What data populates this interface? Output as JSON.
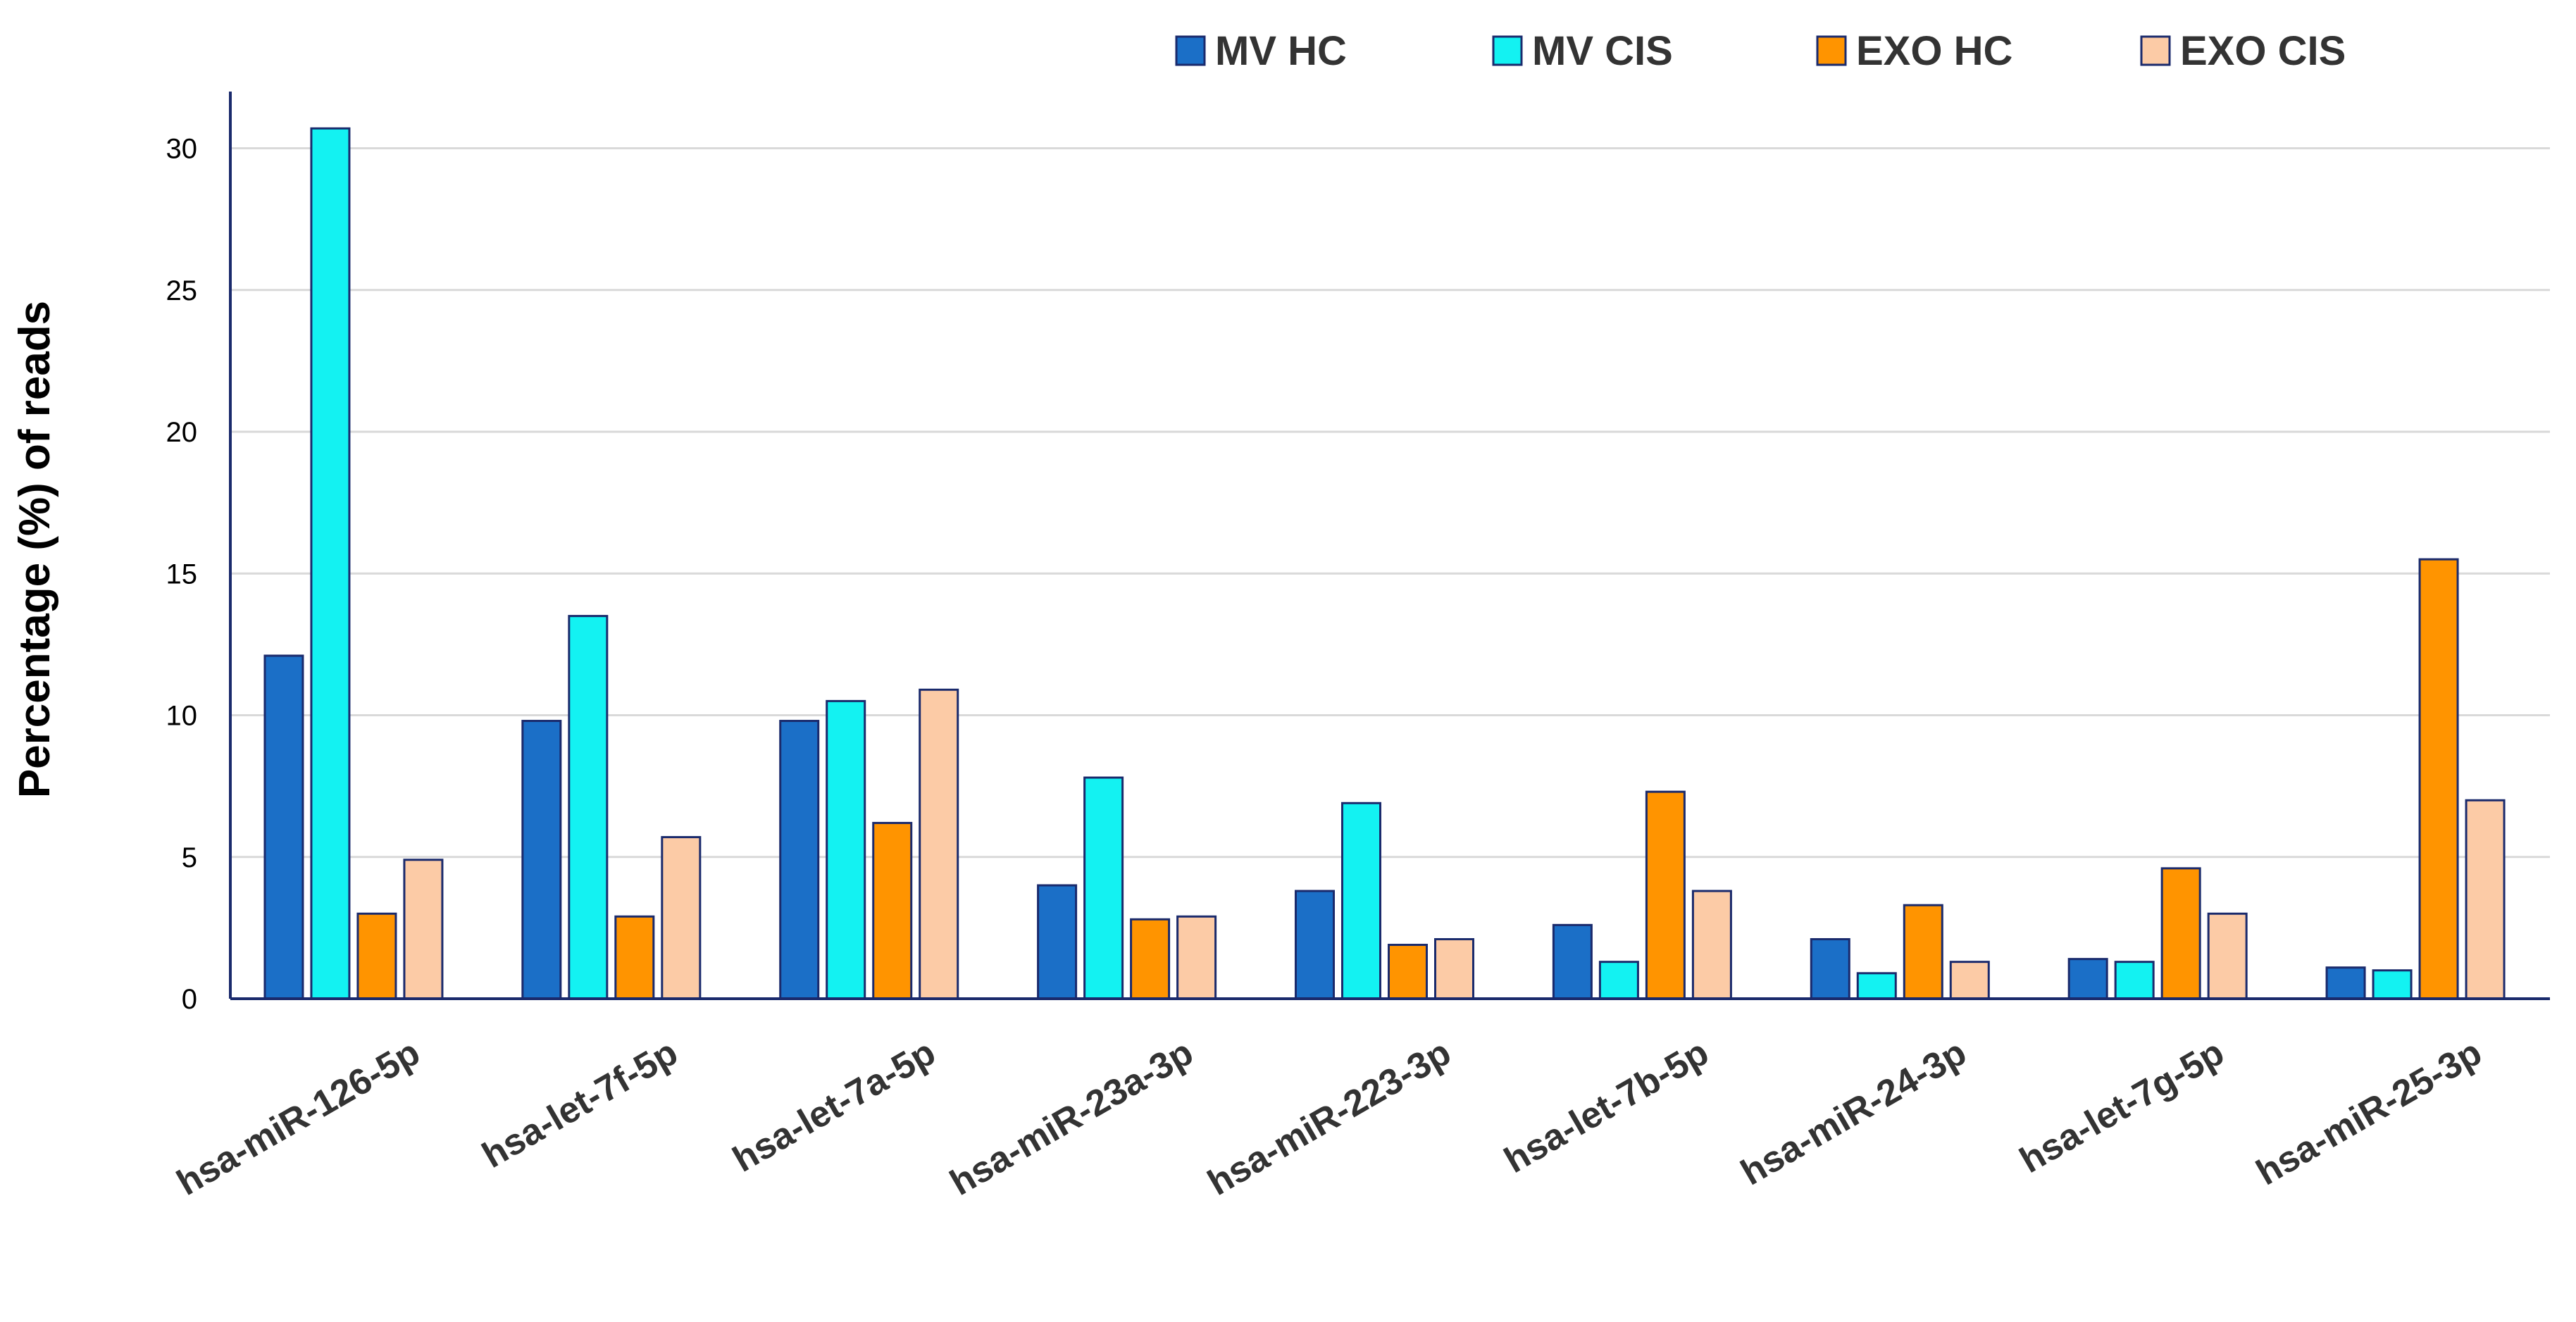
{
  "chart_data": {
    "type": "bar",
    "title": "",
    "xlabel": "",
    "ylabel": "Percentage (%) of reads",
    "ylim": [
      0,
      32
    ],
    "yticks": [
      0,
      5,
      10,
      15,
      20,
      25,
      30
    ],
    "grid": true,
    "legend_position": "top-right",
    "categories": [
      "hsa-miR-126-5p",
      "hsa-let-7f-5p",
      "hsa-let-7a-5p",
      "hsa-miR-23a-3p",
      "hsa-miR-223-3p",
      "hsa-let-7b-5p",
      "hsa-miR-24-3p",
      "hsa-let-7g-5p",
      "hsa-miR-25-3p"
    ],
    "series": [
      {
        "name": "MV HC",
        "color": "#1b6fc7",
        "values": [
          12.1,
          9.8,
          9.8,
          4.0,
          3.8,
          2.6,
          2.1,
          1.4,
          1.1
        ]
      },
      {
        "name": "MV CIS",
        "color": "#13f2f2",
        "values": [
          30.7,
          13.5,
          10.5,
          7.8,
          6.9,
          1.3,
          0.9,
          1.3,
          1.0
        ]
      },
      {
        "name": "EXO HC",
        "color": "#ff9400",
        "values": [
          3.0,
          2.9,
          6.2,
          2.8,
          1.9,
          7.3,
          3.3,
          4.6,
          15.5
        ]
      },
      {
        "name": "EXO CIS",
        "color": "#fccba6",
        "values": [
          4.9,
          5.7,
          10.9,
          2.9,
          2.1,
          3.8,
          1.3,
          3.0,
          7.0
        ]
      }
    ]
  }
}
